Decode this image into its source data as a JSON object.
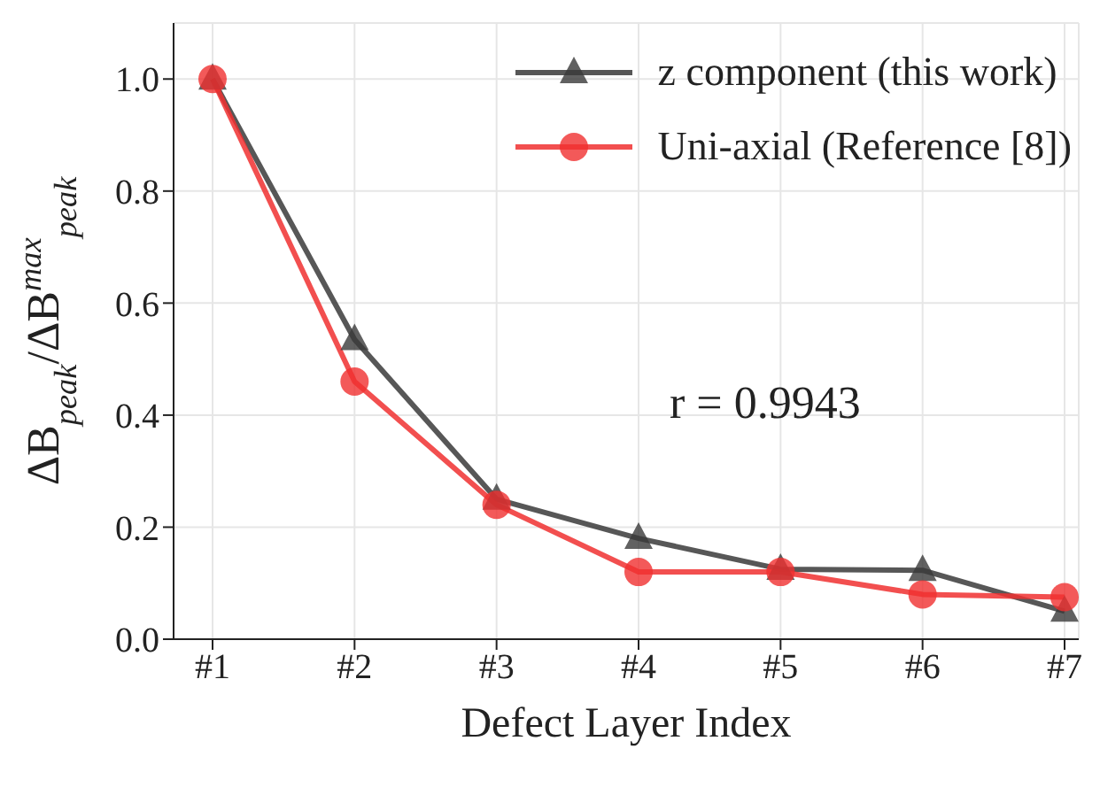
{
  "chart_data": {
    "type": "line",
    "xlabel": "Defect Layer Index",
    "ylabel": "ΔB$_{peak}$/ΔB$^{max}$$_{peak}$",
    "categories": [
      "#1",
      "#2",
      "#3",
      "#4",
      "#5",
      "#6",
      "#7"
    ],
    "series": [
      {
        "name": "z component (this work)",
        "color": "#3a3a3a",
        "marker": "triangle",
        "values": [
          1.0,
          0.535,
          0.25,
          0.18,
          0.125,
          0.123,
          0.05
        ]
      },
      {
        "name": "Uni-axial (Reference [8])",
        "color": "#f03030",
        "marker": "circle",
        "values": [
          1.0,
          0.46,
          0.24,
          0.12,
          0.12,
          0.08,
          0.075
        ]
      }
    ],
    "ylim": [
      0,
      1.1
    ],
    "yticks": [
      {
        "value": 0,
        "label": "0.0"
      },
      {
        "value": 0.2,
        "label": "0.2"
      },
      {
        "value": 0.4,
        "label": "0.4"
      },
      {
        "value": 0.6,
        "label": "0.6"
      },
      {
        "value": 0.8,
        "label": "0.8"
      },
      {
        "value": 1,
        "label": "1.0"
      }
    ],
    "grid": true,
    "legend": "top right",
    "line_style": "solid",
    "annotations": [
      "r = 0.9943"
    ]
  }
}
